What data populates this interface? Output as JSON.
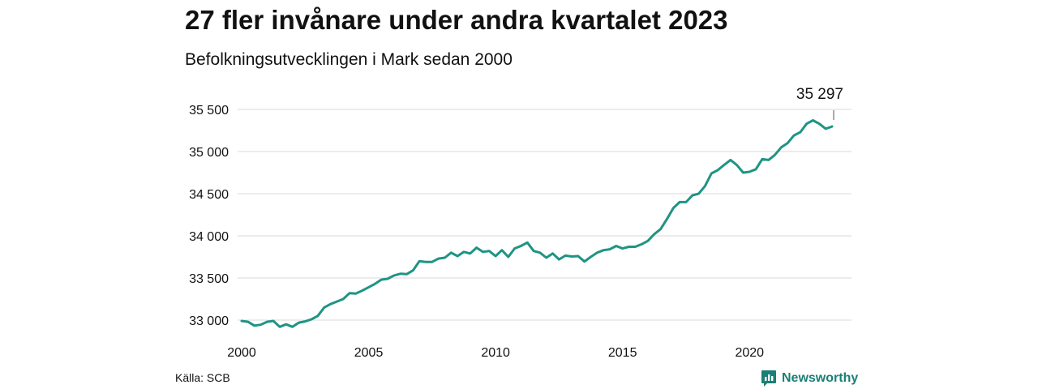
{
  "header": {
    "title": "27 fler invånare under andra kvartalet 2023",
    "subtitle": "Befolkningsutvecklingen i Mark sedan 2000"
  },
  "footer": {
    "source": "Källa: SCB",
    "brand": "Newsworthy",
    "brand_icon": "bar-chart-logo-icon"
  },
  "colors": {
    "line": "#1f9484",
    "grid": "#d9d9d9",
    "brand": "#1a7f75"
  },
  "chart_data": {
    "type": "line",
    "grid": true,
    "ylim": [
      33000,
      35500
    ],
    "yticks": [
      33000,
      33500,
      34000,
      34500,
      35000,
      35500
    ],
    "ytick_labels": [
      "33 000",
      "33 500",
      "34 000",
      "34 500",
      "35 000",
      "35 500"
    ],
    "xlim": [
      2000,
      2023.25
    ],
    "xticks": [
      2000,
      2005,
      2010,
      2015,
      2020
    ],
    "xtick_labels": [
      "2000",
      "2005",
      "2010",
      "2015",
      "2020"
    ],
    "series": [
      {
        "x": [
          2000.0,
          2000.25,
          2000.5,
          2000.75,
          2001.0,
          2001.25,
          2001.5,
          2001.75,
          2002.0,
          2002.25,
          2002.5,
          2002.75,
          2003.0,
          2003.25,
          2003.5,
          2003.75,
          2004.0,
          2004.25,
          2004.5,
          2004.75,
          2005.0,
          2005.25,
          2005.5,
          2005.75,
          2006.0,
          2006.25,
          2006.5,
          2006.75,
          2007.0,
          2007.25,
          2007.5,
          2007.75,
          2008.0,
          2008.25,
          2008.5,
          2008.75,
          2009.0,
          2009.25,
          2009.5,
          2009.75,
          2010.0,
          2010.25,
          2010.5,
          2010.75,
          2011.0,
          2011.25,
          2011.5,
          2011.75,
          2012.0,
          2012.25,
          2012.5,
          2012.75,
          2013.0,
          2013.25,
          2013.5,
          2013.75,
          2014.0,
          2014.25,
          2014.5,
          2014.75,
          2015.0,
          2015.25,
          2015.5,
          2015.75,
          2016.0,
          2016.25,
          2016.5,
          2016.75,
          2017.0,
          2017.25,
          2017.5,
          2017.75,
          2018.0,
          2018.25,
          2018.5,
          2018.75,
          2019.0,
          2019.25,
          2019.5,
          2019.75,
          2020.0,
          2020.25,
          2020.5,
          2020.75,
          2021.0,
          2021.25,
          2021.5,
          2021.75,
          2022.0,
          2022.25,
          2022.5,
          2022.75,
          2023.0,
          2023.25
        ],
        "values": [
          32990,
          32980,
          32935,
          32945,
          32980,
          32990,
          32920,
          32950,
          32920,
          32970,
          32985,
          33010,
          33050,
          33150,
          33190,
          33220,
          33250,
          33320,
          33315,
          33350,
          33390,
          33430,
          33480,
          33490,
          33530,
          33550,
          33545,
          33590,
          33700,
          33690,
          33690,
          33730,
          33740,
          33800,
          33760,
          33810,
          33790,
          33860,
          33810,
          33820,
          33760,
          33830,
          33750,
          33850,
          33880,
          33920,
          33820,
          33800,
          33740,
          33790,
          33720,
          33765,
          33755,
          33760,
          33695,
          33750,
          33800,
          33830,
          33840,
          33880,
          33850,
          33870,
          33870,
          33900,
          33940,
          34020,
          34080,
          34200,
          34330,
          34400,
          34400,
          34480,
          34500,
          34590,
          34740,
          34780,
          34840,
          34900,
          34840,
          34750,
          34760,
          34790,
          34910,
          34900,
          34960,
          35050,
          35100,
          35190,
          35230,
          35330,
          35370,
          35330,
          35270,
          35297
        ]
      }
    ],
    "annotation": {
      "label": "35 297",
      "x": 2023.25,
      "value": 35297
    }
  }
}
